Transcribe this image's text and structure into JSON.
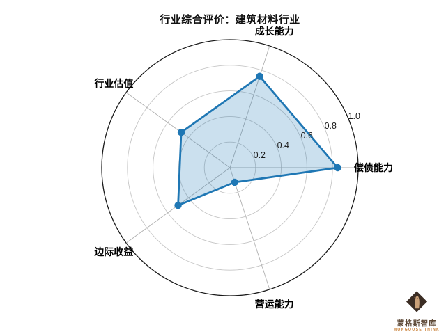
{
  "page": {
    "background": "#ffffff"
  },
  "chart_data": {
    "type": "radar",
    "title": "行业综合评价：建筑材料行业",
    "categories": [
      "偿债能力",
      "成长能力",
      "行业估值",
      "边际收益",
      "营运能力"
    ],
    "values": [
      0.84,
      0.75,
      0.47,
      0.5,
      0.12
    ],
    "series": [
      {
        "name": "建筑材料行业",
        "values": [
          0.84,
          0.75,
          0.47,
          0.5,
          0.12
        ]
      }
    ],
    "start_angle_deg": 0,
    "direction": "counterclockwise",
    "rlim": [
      0,
      1.0
    ],
    "rticks": [
      0.2,
      0.4,
      0.6,
      0.8,
      1.0
    ],
    "rtick_labels": [
      "0.2",
      "0.4",
      "0.6",
      "0.8",
      "1.0"
    ],
    "rlabel_angle_deg": 22.5,
    "grid": true,
    "legend": "none",
    "colors": {
      "line": "#1f77b4",
      "fill": "rgba(31,119,180,0.23)",
      "grid": "#c6c6c6",
      "spoke": "#b0b0b0",
      "outer": "#1a1a1a",
      "tick_text": "#1a1a1a",
      "label_text": "#000000"
    }
  },
  "branding": {
    "logo_icon": "mongoose-diamond-icon",
    "name_cn": "蒙格斯智库",
    "name_en": "MONGOOSE THINK",
    "colors": {
      "diamond": "#3b2d24",
      "head": "#c9a078",
      "head_shadow": "#8a6b4f",
      "text_cn": "#5d4937",
      "text_en": "#c77d33"
    }
  }
}
